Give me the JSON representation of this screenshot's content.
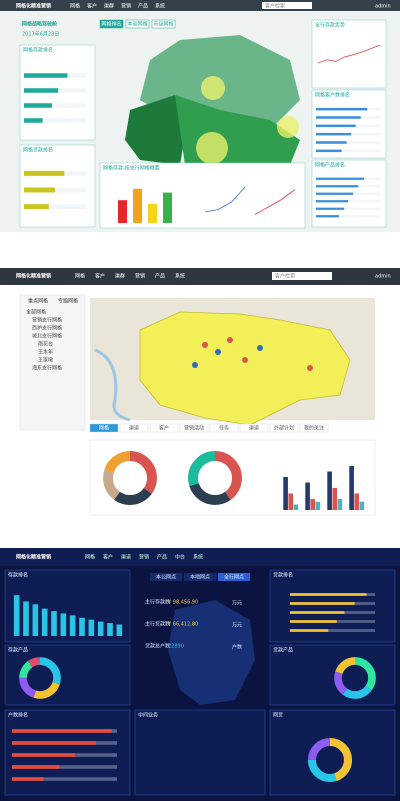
{
  "screen1": {
    "brand": "网格化精准营销",
    "nav": [
      "网格",
      "客户",
      "渠群",
      "营销",
      "产品",
      "系统"
    ],
    "search": "客户检索",
    "user": "admin",
    "title": "网格战略驾驶舱",
    "date": "2017年6月23日",
    "tabs": [
      "网格排名",
      "本省网格",
      "市级网格"
    ],
    "panels": [
      "网格存款排名",
      "网格贷款排名",
      "全行存款走势",
      "网格客户数排名",
      "网格产品排名",
      "网格存款-按支行网格概要"
    ],
    "charts": [
      {
        "type": "bar",
        "values": [
          6,
          9,
          5,
          8
        ],
        "colors": [
          "#e8262a",
          "#f2a21b",
          "#f5d31b",
          "#37b24a"
        ],
        "ylim": [
          0,
          10
        ]
      },
      {
        "type": "line",
        "values": [
          30,
          36,
          33,
          41,
          45,
          50,
          56,
          62
        ],
        "color": "#e0484e",
        "ylim": [
          0,
          80
        ]
      },
      {
        "type": "hbar",
        "values": [
          70,
          55,
          45,
          30
        ],
        "color": "#1fa99b",
        "xlim": [
          0,
          100
        ]
      },
      {
        "type": "hbar",
        "values": [
          65,
          50,
          40
        ],
        "color": "#c9c51e",
        "xlim": [
          0,
          100
        ]
      },
      {
        "type": "hbar",
        "values": [
          80,
          70,
          62,
          55,
          48,
          40
        ],
        "color": "#3b8fd8",
        "xlim": [
          0,
          100
        ]
      },
      {
        "type": "hbar",
        "values": [
          75,
          66,
          58,
          50,
          44,
          36
        ],
        "color": "#3b8fd8",
        "xlim": [
          0,
          100
        ]
      },
      {
        "type": "line",
        "values": [
          20,
          25,
          40,
          70
        ],
        "color": "#3b6fd8",
        "ylim": [
          0,
          80
        ]
      },
      {
        "type": "line",
        "values": [
          15,
          30,
          45,
          65
        ],
        "color": "#d83b50",
        "ylim": [
          0,
          80
        ]
      }
    ]
  },
  "screen2": {
    "brand": "网格化精准营销",
    "nav": [
      "网格",
      "客户",
      "渠群",
      "营销",
      "产品",
      "系统"
    ],
    "search": "客户检索",
    "user": "admin",
    "menu": [
      "重点网格",
      "专题网格"
    ],
    "tree": [
      "全部网格",
      "营销支行网格",
      "西护支行网格",
      "城北支行网格",
      "雨花台",
      "王木年",
      "王家墩",
      "海东支行网格"
    ],
    "tabs": [
      "网格",
      "渠道",
      "客户",
      "营销活动",
      "任务",
      "渠道",
      "外部计划",
      "我的关注"
    ],
    "charts": [
      {
        "type": "donut",
        "values": [
          35,
          25,
          20,
          20
        ],
        "colors": [
          "#d9534f",
          "#2c3e50",
          "#c9a98c",
          "#f0a030"
        ]
      },
      {
        "type": "donut",
        "values": [
          40,
          30,
          30
        ],
        "colors": [
          "#d9534f",
          "#2c3e50",
          "#1abc9c"
        ]
      },
      {
        "type": "groupbar",
        "ylim": [
          0,
          100
        ],
        "series": [
          {
            "color": "#243a6b",
            "values": [
              60,
              50,
              70,
              80
            ]
          },
          {
            "color": "#d9534f",
            "values": [
              30,
              20,
              40,
              30
            ]
          },
          {
            "color": "#4fb3bf",
            "values": [
              10,
              15,
              20,
              15
            ]
          }
        ]
      }
    ]
  },
  "screen3": {
    "brand": "网格化精准营销",
    "nav": [
      "网格",
      "客户",
      "渠道",
      "营销",
      "产品",
      "中台",
      "系统"
    ],
    "panels": [
      "存款排名",
      "贷款排名",
      "存款产品",
      "贷款产品",
      "户数排名",
      "中间业务",
      "网贷"
    ],
    "tabs": [
      "本公网点",
      "本地网点",
      "全行网点"
    ],
    "kpis": [
      {
        "label": "主行存款数",
        "value": "¥ 98,456,90",
        "unit": "万元"
      },
      {
        "label": "主行贷款数",
        "value": "¥ 66,412,80",
        "unit": "万元"
      },
      {
        "label": "贷款总户数",
        "value": "22890",
        "unit": "户数"
      }
    ],
    "charts": [
      {
        "type": "bar",
        "values": [
          85,
          72,
          66,
          57,
          52,
          47,
          43,
          38,
          34,
          30,
          27,
          24
        ],
        "color": "#29c5e6",
        "ylim": [
          0,
          100
        ]
      },
      {
        "type": "hbar",
        "values": [
          90,
          76,
          64,
          55,
          45
        ],
        "color": "#f1c232",
        "xlim": [
          0,
          100
        ]
      },
      {
        "type": "donut",
        "values": [
          30,
          25,
          20,
          15,
          10
        ],
        "colors": [
          "#29c5e6",
          "#f1c232",
          "#8e5cf0",
          "#2ee6a0",
          "#e64a6a"
        ]
      },
      {
        "type": "donut",
        "values": [
          35,
          25,
          20,
          20
        ],
        "colors": [
          "#2ee6a0",
          "#29c5e6",
          "#8e5cf0",
          "#f1c232"
        ]
      },
      {
        "type": "hbar",
        "values": [
          95,
          80,
          60,
          45,
          30
        ],
        "color": "#e64a3a",
        "xlim": [
          0,
          100
        ]
      },
      {
        "type": "donut",
        "values": [
          45,
          30,
          25
        ],
        "colors": [
          "#f1c232",
          "#29c5e6",
          "#8e5cf0"
        ]
      }
    ]
  }
}
